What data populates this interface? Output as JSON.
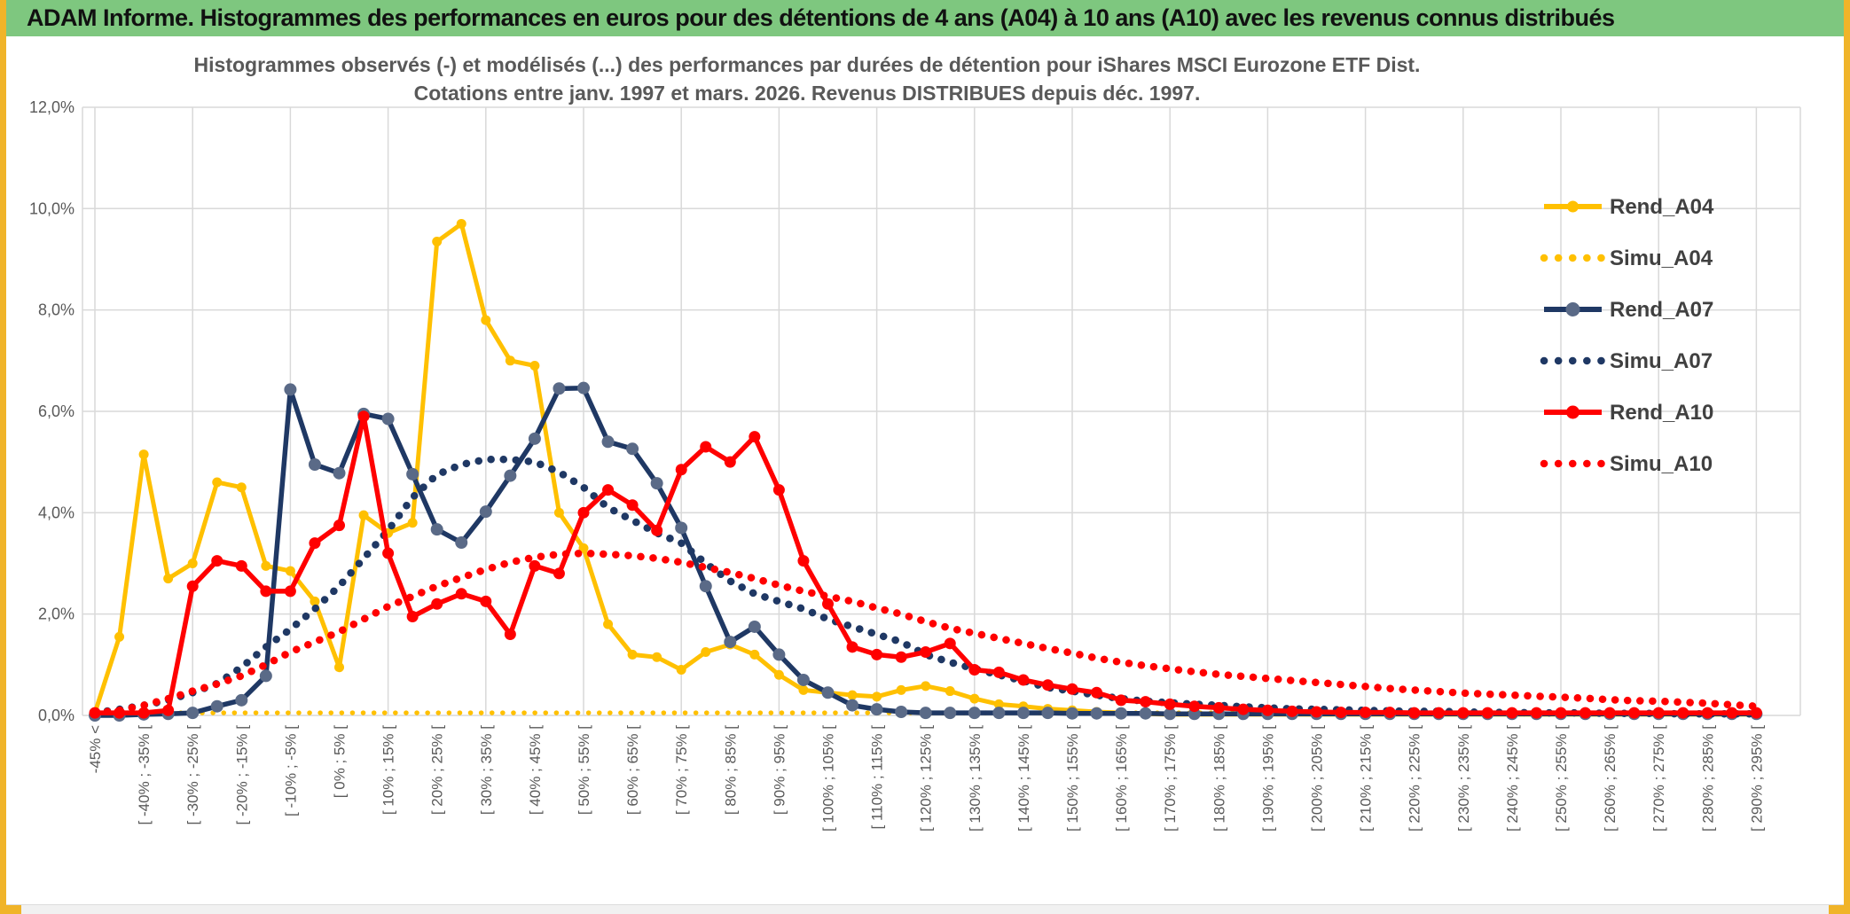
{
  "header": {
    "title": "ADAM Informe. Histogrammes des performances en euros pour des détentions de 4 ans (A04) à 10 ans (A10) avec les revenus connus distribués"
  },
  "chart": {
    "title_line1": "Histogrammes observés (-) et modélisés (...) des performances par durées de détention pour iShares MSCI Eurozone ETF Dist.",
    "title_line2": "Cotations entre janv. 1997 et mars. 2026. Revenus DISTRIBUES depuis déc. 1997.",
    "y_ticks": [
      "12,0%",
      "10,0%",
      "8,0%",
      "6,0%",
      "4,0%",
      "2,0%",
      "0,0%"
    ]
  },
  "colors": {
    "header_bg": "#7EC77F",
    "gold": "#FFC000",
    "navy": "#1F3864",
    "navy_marker": "#5A6A87",
    "red": "#FF0000",
    "grid": "#D9D9D9",
    "axis_text": "#595959",
    "title_text": "#595959",
    "legend_text": "#404040",
    "border_gold": "#F0B429"
  },
  "chart_data": {
    "type": "line",
    "title": "Histogrammes observés (-) et modélisés (...) des performances par durées de détention pour iShares MSCI Eurozone ETF Dist. Cotations entre janv. 1997 et mars. 2026. Revenus DISTRIBUES depuis déc. 1997.",
    "xlabel": "",
    "ylabel": "",
    "ylim": [
      0,
      12
    ],
    "y_tick_step": 2,
    "grid": true,
    "legend_position": "right-inside",
    "categories": [
      "-45% <",
      "",
      "[ -40% ; -35% [",
      "",
      "[ -30% ; -25% [",
      "",
      "[ -20% ; -15% [",
      "",
      "[ -10% ; -5% [",
      "",
      "[ 0% ; 5% [",
      "",
      "[ 10% ; 15% [",
      "",
      "[ 20% ; 25% [",
      "",
      "[ 30% ; 35% [",
      "",
      "[ 40% ; 45% [",
      "",
      "[ 50% ; 55% [",
      "",
      "[ 60% ; 65% [",
      "",
      "[ 70% ; 75% [",
      "",
      "[ 80% ; 85% [",
      "",
      "[ 90% ; 95% [",
      "",
      "[ 100% ; 105% [",
      "",
      "[ 110% ; 115% [",
      "",
      "[ 120% ; 125% [",
      "",
      "[ 130% ; 135% [",
      "",
      "[ 140% ; 145% [",
      "",
      "[ 150% ; 155% [",
      "",
      "[ 160% ; 165% [",
      "",
      "[ 170% ; 175% [",
      "",
      "[ 180% ; 185% [",
      "",
      "[ 190% ; 195% [",
      "",
      "[ 200% ; 205% [",
      "",
      "[ 210% ; 215% [",
      "",
      "[ 220% ; 225% [",
      "",
      "[ 230% ; 235% [",
      "",
      "[ 240% ; 245% [",
      "",
      "[ 250% ; 255% [",
      "",
      "[ 260% ; 265% [",
      "",
      "[ 270% ; 275% [",
      "",
      "[ 280% ; 285% [",
      "",
      "[ 290% ; 295% ["
    ],
    "series": [
      {
        "name": "Rend_A04",
        "style": "solid",
        "color": "#FFC000",
        "marker_color": "#FFC000",
        "width": 5,
        "marker_r": 5.5,
        "values": [
          0.05,
          1.55,
          5.15,
          2.7,
          3.0,
          4.6,
          4.5,
          2.95,
          2.85,
          2.25,
          0.95,
          3.95,
          3.6,
          3.8,
          9.35,
          9.7,
          7.8,
          7.0,
          6.9,
          4.0,
          3.3,
          1.8,
          1.2,
          1.15,
          0.9,
          1.25,
          1.4,
          1.2,
          0.8,
          0.5,
          0.45,
          0.4,
          0.37,
          0.5,
          0.58,
          0.48,
          0.33,
          0.22,
          0.18,
          0.13,
          0.1,
          0.07,
          0.05,
          0.03,
          0.02,
          0.02,
          0.02,
          0.02,
          0.02,
          0.02,
          0.02,
          0.02,
          0.02,
          0.02,
          0.02,
          0.02,
          0.02,
          0.02,
          0.02,
          0.02,
          0.02,
          0.02,
          0.02,
          0.02,
          0.02,
          0.02,
          0.02,
          0.02,
          0.02
        ]
      },
      {
        "name": "Simu_A04",
        "style": "dotted",
        "color": "#FFC000",
        "marker_color": "#FFC000",
        "width": 5.5,
        "dot_gap": 12,
        "values": [
          0.05,
          0.05,
          0.05,
          0.05,
          0.05,
          0.05,
          0.05,
          0.05,
          0.05,
          0.05,
          0.05,
          0.05,
          0.05,
          0.05,
          0.05,
          0.05,
          0.05,
          0.05,
          0.05,
          0.05,
          0.05,
          0.05,
          0.05,
          0.05,
          0.05,
          0.05,
          0.05,
          0.05,
          0.05,
          0.05,
          0.05,
          0.05,
          0.05,
          0.05,
          0.05,
          0.05,
          0.05,
          0.05,
          0.05,
          0.05,
          0.05,
          0.05,
          0.05,
          0.05,
          0.05,
          0.05,
          0.05,
          0.05,
          0.05,
          0.05,
          0.05,
          0.05,
          0.05,
          0.05,
          0.05,
          0.05,
          0.05,
          0.05,
          0.05,
          0.05,
          0.05,
          0.05,
          0.05,
          0.05,
          0.05,
          0.05,
          0.05,
          0.05,
          0.05
        ]
      },
      {
        "name": "Rend_A07",
        "style": "solid",
        "color": "#1F3864",
        "marker_color": "#5A6A87",
        "width": 5.5,
        "marker_r": 7,
        "values": [
          0.0,
          0.0,
          0.02,
          0.03,
          0.05,
          0.18,
          0.3,
          0.78,
          6.43,
          4.95,
          4.78,
          5.95,
          5.85,
          4.76,
          3.67,
          3.41,
          4.02,
          4.73,
          5.46,
          6.45,
          6.46,
          5.4,
          5.26,
          4.58,
          3.7,
          2.55,
          1.45,
          1.75,
          1.2,
          0.7,
          0.45,
          0.2,
          0.12,
          0.07,
          0.05,
          0.05,
          0.05,
          0.05,
          0.05,
          0.05,
          0.04,
          0.04,
          0.04,
          0.04,
          0.03,
          0.03,
          0.03,
          0.03,
          0.03,
          0.03,
          0.03,
          0.03,
          0.03,
          0.03,
          0.03,
          0.03,
          0.03,
          0.03,
          0.03,
          0.03,
          0.03,
          0.03,
          0.03,
          0.03,
          0.03,
          0.03,
          0.03,
          0.03,
          0.03
        ]
      },
      {
        "name": "Simu_A07",
        "style": "dotted",
        "color": "#1F3864",
        "marker_color": "#1F3864",
        "width": 8.5,
        "dot_gap": 14,
        "values": [
          0.05,
          0.12,
          0.2,
          0.3,
          0.45,
          0.63,
          0.95,
          1.35,
          1.7,
          2.1,
          2.55,
          3.1,
          3.65,
          4.3,
          4.75,
          4.95,
          5.05,
          5.05,
          5.0,
          4.8,
          4.5,
          4.1,
          3.85,
          3.6,
          3.4,
          3.0,
          2.65,
          2.4,
          2.25,
          2.1,
          1.9,
          1.75,
          1.6,
          1.45,
          1.2,
          1.05,
          0.92,
          0.8,
          0.68,
          0.55,
          0.48,
          0.4,
          0.33,
          0.28,
          0.25,
          0.22,
          0.2,
          0.17,
          0.15,
          0.13,
          0.12,
          0.11,
          0.1,
          0.09,
          0.08,
          0.08,
          0.07,
          0.06,
          0.06,
          0.05,
          0.05,
          0.05,
          0.04,
          0.04,
          0.04,
          0.03,
          0.03,
          0.03,
          0.03
        ]
      },
      {
        "name": "Rend_A10",
        "style": "solid",
        "color": "#FF0000",
        "marker_color": "#FF0000",
        "width": 5.5,
        "marker_r": 6.5,
        "values": [
          0.05,
          0.05,
          0.05,
          0.1,
          2.55,
          3.05,
          2.95,
          2.45,
          2.45,
          3.4,
          3.75,
          5.9,
          3.2,
          1.95,
          2.2,
          2.4,
          2.25,
          1.6,
          2.95,
          2.8,
          4.0,
          4.45,
          4.15,
          3.65,
          4.85,
          5.3,
          5.0,
          5.5,
          4.45,
          3.05,
          2.2,
          1.35,
          1.2,
          1.15,
          1.25,
          1.42,
          0.9,
          0.85,
          0.7,
          0.6,
          0.52,
          0.45,
          0.3,
          0.27,
          0.22,
          0.18,
          0.15,
          0.12,
          0.1,
          0.08,
          0.07,
          0.06,
          0.06,
          0.06,
          0.05,
          0.05,
          0.05,
          0.05,
          0.05,
          0.05,
          0.05,
          0.05,
          0.05,
          0.05,
          0.05,
          0.05,
          0.05,
          0.05,
          0.05
        ]
      },
      {
        "name": "Simu_A10",
        "style": "dotted",
        "color": "#FF0000",
        "marker_color": "#FF0000",
        "width": 8.5,
        "dot_gap": 14,
        "values": [
          0.05,
          0.1,
          0.2,
          0.33,
          0.48,
          0.62,
          0.78,
          1.0,
          1.25,
          1.45,
          1.65,
          1.9,
          2.15,
          2.35,
          2.55,
          2.72,
          2.88,
          3.02,
          3.12,
          3.18,
          3.2,
          3.18,
          3.15,
          3.1,
          3.02,
          2.92,
          2.82,
          2.7,
          2.57,
          2.45,
          2.35,
          2.25,
          2.12,
          2.0,
          1.85,
          1.72,
          1.62,
          1.52,
          1.42,
          1.32,
          1.23,
          1.13,
          1.05,
          0.98,
          0.92,
          0.86,
          0.81,
          0.77,
          0.73,
          0.69,
          0.65,
          0.61,
          0.57,
          0.53,
          0.5,
          0.47,
          0.44,
          0.42,
          0.4,
          0.38,
          0.36,
          0.34,
          0.31,
          0.29,
          0.28,
          0.26,
          0.24,
          0.21,
          0.18
        ]
      }
    ]
  }
}
